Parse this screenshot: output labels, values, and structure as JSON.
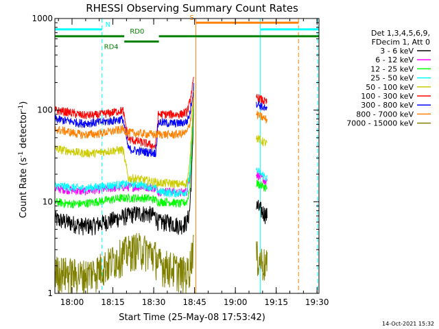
{
  "chart_data": {
    "type": "line",
    "title": "RHESSI Observing Summary Count Rates",
    "xlabel": "Start Time (25-May-08 17:53:42)",
    "ylabel_main": "Count Rate (s",
    "ylabel_sup1": "-1",
    "ylabel_mid": " detector",
    "ylabel_sup2": "-1",
    "ylabel_end": ")",
    "yscale": "log",
    "ylim": [
      1,
      1000
    ],
    "xlim_min": [
      0,
      97
    ],
    "x_ticks": [
      {
        "t": 6.3,
        "label": "18:00"
      },
      {
        "t": 21.3,
        "label": "18:15"
      },
      {
        "t": 36.3,
        "label": "18:30"
      },
      {
        "t": 51.3,
        "label": "18:45"
      },
      {
        "t": 66.3,
        "label": "19:00"
      },
      {
        "t": 81.3,
        "label": "19:15"
      },
      {
        "t": 96.3,
        "label": "19:30"
      }
    ],
    "y_ticks": [
      {
        "v": 1,
        "label": "1"
      },
      {
        "v": 10,
        "label": "10"
      },
      {
        "v": 100,
        "label": "100"
      },
      {
        "v": 1000,
        "label": "1000"
      }
    ],
    "legend_header": [
      "Det 1,3,4,5,6,9,",
      "FDecim 1, Att 0"
    ],
    "series": [
      {
        "name": "3 - 6 keV",
        "color": "#000000",
        "values": [
          [
            0,
            6.5
          ],
          [
            5,
            6
          ],
          [
            10,
            5.5
          ],
          [
            14,
            5.5
          ],
          [
            18,
            6
          ],
          [
            22,
            6.5
          ],
          [
            26,
            7
          ],
          [
            30,
            7.5
          ],
          [
            34,
            7.5
          ],
          [
            37,
            7
          ],
          [
            38,
            6
          ],
          [
            42,
            6
          ],
          [
            46,
            5.5
          ],
          [
            48.5,
            6
          ],
          [
            49.5,
            8
          ],
          [
            50.5,
            30
          ],
          [
            51,
            150
          ]
        ],
        "post": [
          [
            74,
            9
          ],
          [
            76,
            8
          ],
          [
            78,
            7
          ]
        ]
      },
      {
        "name": "6 - 12 keV",
        "color": "#ff00ff",
        "values": [
          [
            0,
            14
          ],
          [
            5,
            13.5
          ],
          [
            10,
            13
          ],
          [
            15,
            13.5
          ],
          [
            20,
            14
          ],
          [
            25,
            14.5
          ],
          [
            30,
            14.5
          ],
          [
            34,
            14.5
          ],
          [
            37,
            14
          ],
          [
            38,
            13
          ],
          [
            42,
            13
          ],
          [
            46,
            12.5
          ],
          [
            48.5,
            13
          ],
          [
            49.5,
            18
          ],
          [
            50.5,
            60
          ],
          [
            51,
            180
          ]
        ],
        "post": [
          [
            74,
            20
          ],
          [
            76,
            18
          ],
          [
            78,
            16
          ]
        ]
      },
      {
        "name": "12 - 25 keV",
        "color": "#00ff00",
        "values": [
          [
            0,
            10
          ],
          [
            5,
            9.5
          ],
          [
            10,
            9.5
          ],
          [
            15,
            10
          ],
          [
            20,
            10.5
          ],
          [
            25,
            11
          ],
          [
            30,
            11
          ],
          [
            34,
            11
          ],
          [
            37,
            10.5
          ],
          [
            38,
            10
          ],
          [
            42,
            10
          ],
          [
            46,
            9.5
          ],
          [
            48.5,
            10
          ],
          [
            49.5,
            14
          ],
          [
            50.5,
            50
          ],
          [
            51,
            170
          ]
        ],
        "post": [
          [
            74,
            16
          ],
          [
            76,
            15
          ],
          [
            78,
            14
          ]
        ]
      },
      {
        "name": "25 - 50 keV",
        "color": "#00ffff",
        "values": [
          [
            0,
            15
          ],
          [
            5,
            14.5
          ],
          [
            10,
            14
          ],
          [
            15,
            14.5
          ],
          [
            20,
            15
          ],
          [
            25,
            15.5
          ],
          [
            30,
            15.5
          ],
          [
            34,
            15
          ],
          [
            37,
            14
          ],
          [
            38,
            13
          ],
          [
            42,
            12.5
          ],
          [
            46,
            12.5
          ],
          [
            48.5,
            13
          ],
          [
            49.5,
            20
          ],
          [
            50.5,
            70
          ],
          [
            51,
            200
          ]
        ],
        "post": [
          [
            74,
            22
          ],
          [
            76,
            20
          ],
          [
            78,
            18
          ]
        ]
      },
      {
        "name": "50 - 100 keV",
        "color": "#cccc00",
        "values": [
          [
            0,
            38
          ],
          [
            5,
            36
          ],
          [
            10,
            34
          ],
          [
            15,
            34
          ],
          [
            20,
            36
          ],
          [
            25,
            37
          ],
          [
            27,
            18
          ],
          [
            30,
            18
          ],
          [
            34,
            17
          ],
          [
            37,
            16.5
          ],
          [
            38,
            16
          ],
          [
            42,
            16
          ],
          [
            46,
            15.5
          ],
          [
            48.5,
            16
          ],
          [
            49.5,
            25
          ],
          [
            50.5,
            80
          ],
          [
            51,
            150
          ]
        ],
        "post": [
          [
            74,
            50
          ],
          [
            76,
            46
          ],
          [
            78,
            43
          ]
        ]
      },
      {
        "name": "100 - 300 keV",
        "color": "#ff0000",
        "values": [
          [
            0,
            100
          ],
          [
            5,
            95
          ],
          [
            10,
            88
          ],
          [
            15,
            88
          ],
          [
            20,
            93
          ],
          [
            25,
            100
          ],
          [
            27,
            48
          ],
          [
            30,
            46
          ],
          [
            34,
            43
          ],
          [
            37,
            40
          ],
          [
            38,
            90
          ],
          [
            42,
            90
          ],
          [
            46,
            90
          ],
          [
            48.5,
            95
          ],
          [
            49.5,
            120
          ],
          [
            50.5,
            180
          ],
          [
            51,
            210
          ]
        ],
        "post": [
          [
            74,
            140
          ],
          [
            76,
            130
          ],
          [
            78,
            120
          ]
        ]
      },
      {
        "name": "300 - 800 keV",
        "color": "#0000ff",
        "values": [
          [
            0,
            80
          ],
          [
            5,
            76
          ],
          [
            10,
            72
          ],
          [
            15,
            73
          ],
          [
            20,
            76
          ],
          [
            25,
            80
          ],
          [
            27,
            38
          ],
          [
            30,
            36
          ],
          [
            34,
            35
          ],
          [
            37,
            34
          ],
          [
            38,
            74
          ],
          [
            42,
            72
          ],
          [
            46,
            72
          ],
          [
            48.5,
            75
          ],
          [
            49.5,
            90
          ],
          [
            50.5,
            140
          ],
          [
            51,
            180
          ]
        ],
        "post": [
          [
            74,
            120
          ],
          [
            76,
            110
          ],
          [
            78,
            100
          ]
        ]
      },
      {
        "name": "800 - 7000 keV",
        "color": "#ff8000",
        "values": [
          [
            0,
            62
          ],
          [
            5,
            58
          ],
          [
            10,
            54
          ],
          [
            15,
            55
          ],
          [
            20,
            58
          ],
          [
            25,
            62
          ],
          [
            27,
            57
          ],
          [
            30,
            56
          ],
          [
            34,
            55
          ],
          [
            37,
            54
          ],
          [
            38,
            55
          ],
          [
            42,
            54
          ],
          [
            46,
            55
          ],
          [
            48.5,
            57
          ],
          [
            49.5,
            70
          ],
          [
            50.5,
            110
          ],
          [
            51,
            150
          ]
        ],
        "post": [
          [
            74,
            90
          ],
          [
            76,
            84
          ],
          [
            78,
            78
          ]
        ]
      },
      {
        "name": "7000 - 15000 keV",
        "color": "#808000",
        "values": [
          [
            0,
            1.8
          ],
          [
            5,
            1.7
          ],
          [
            10,
            1.6
          ],
          [
            15,
            1.8
          ],
          [
            20,
            2.2
          ],
          [
            25,
            2.8
          ],
          [
            30,
            3.2
          ],
          [
            34,
            3.0
          ],
          [
            37,
            2.6
          ],
          [
            38,
            2.2
          ],
          [
            42,
            2.0
          ],
          [
            46,
            1.8
          ],
          [
            48.5,
            1.7
          ],
          [
            49.5,
            2
          ],
          [
            50.5,
            3
          ],
          [
            51,
            4
          ]
        ],
        "post": [
          [
            74,
            2.6
          ],
          [
            76,
            2.3
          ],
          [
            78,
            2.0
          ]
        ]
      }
    ],
    "vlines": [
      {
        "t": 0,
        "color": "#00ffff",
        "dash": false
      },
      {
        "t": 17.3,
        "color": "#00ffff",
        "dash": true
      },
      {
        "t": 51.8,
        "color": "#ff8000",
        "dash": false
      },
      {
        "t": 75.5,
        "color": "#00ffff",
        "dash": false
      },
      {
        "t": 89.5,
        "color": "#ff8000",
        "dash": true
      },
      {
        "t": 96.5,
        "color": "#00ffff",
        "dash": true
      }
    ],
    "bars": [
      {
        "t0": 0,
        "t1": 17.3,
        "v": 760,
        "color": "#00ffff",
        "label": "N",
        "label_t": 19.5,
        "label_side": "above"
      },
      {
        "t0": 75.5,
        "t1": 97,
        "v": 760,
        "color": "#00ffff"
      },
      {
        "t0": 51.8,
        "t1": 89.5,
        "v": 900,
        "color": "#ff8000",
        "label": "S",
        "label_t": 50.3,
        "label_side": "above"
      },
      {
        "t0": 0,
        "t1": 25.5,
        "v": 640,
        "color": "#008000"
      },
      {
        "t0": 25.5,
        "t1": 38.2,
        "v": 560,
        "color": "#008000",
        "label": "RD4",
        "label_t": 20.7,
        "label_side": "below"
      },
      {
        "t0": 38.2,
        "t1": 97,
        "v": 640,
        "color": "#008000"
      },
      {
        "t0": 30,
        "t1": 30,
        "v": 640,
        "color": "#008000",
        "label": "RD0",
        "label_t": 30.2,
        "label_side": "above"
      }
    ]
  },
  "footer": {
    "date_stamp": "14-Oct-2021 15:32"
  }
}
